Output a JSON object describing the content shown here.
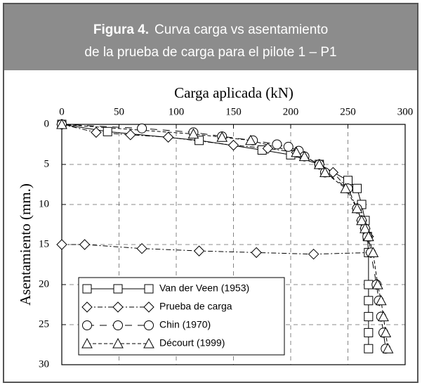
{
  "chart_data": {
    "type": "line",
    "title_label": "Figura 4.",
    "title": "Curva carga vs asentamiento",
    "subtitle": "de la prueba de carga para el pilote 1 – P1",
    "x_label": "Carga aplicada (kN)",
    "y_label": "Asentamiento (mm.)",
    "xlim": [
      0,
      300
    ],
    "xticks": [
      0,
      50,
      100,
      150,
      200,
      250,
      300
    ],
    "ylim": [
      0,
      30
    ],
    "yticks": [
      0,
      5,
      10,
      15,
      20,
      25,
      30
    ],
    "y_inverted": true,
    "grid": true,
    "legend": "lower left",
    "series": [
      {
        "name": "Van der Veen (1953)",
        "color": "#000000",
        "marker": "square",
        "dash": "solid",
        "x": [
          0,
          40,
          120,
          175,
          200,
          225,
          250,
          258,
          262,
          265,
          267,
          268,
          268,
          268,
          268,
          268,
          268
        ],
        "values": [
          0,
          0.9,
          2,
          3.2,
          3.8,
          5,
          7,
          8,
          10,
          12,
          14,
          16,
          20,
          22,
          24,
          26,
          28
        ]
      },
      {
        "name": "Prueba de carga",
        "color": "#000000",
        "marker": "diamond",
        "dash": "dashdot",
        "x": [
          0,
          30,
          60,
          93,
          150,
          180,
          205,
          225,
          237,
          250,
          258,
          262,
          265,
          268,
          270,
          220,
          170,
          120,
          70,
          20,
          0
        ],
        "values": [
          0,
          1,
          1.3,
          1.6,
          2.6,
          3,
          3.5,
          5,
          6,
          8,
          10.5,
          12,
          13,
          14,
          16,
          16.2,
          16,
          15.8,
          15.5,
          15,
          15
        ]
      },
      {
        "name": "Chin (1970)",
        "color": "#000000",
        "marker": "circle",
        "dash": "longdash",
        "x": [
          0,
          70,
          115,
          140,
          167,
          188,
          198,
          207,
          212,
          225,
          230,
          250,
          258,
          262,
          265,
          267,
          270,
          275,
          277,
          279,
          281,
          283
        ],
        "values": [
          0,
          0.5,
          1,
          1.5,
          2,
          2.5,
          2.8,
          3.3,
          4,
          5,
          6,
          8,
          10.5,
          12,
          13,
          14,
          16,
          20,
          22,
          24,
          26,
          28
        ]
      },
      {
        "name": "Décourt (1999)",
        "color": "#000000",
        "marker": "triangle",
        "dash": "dashed",
        "x": [
          0,
          115,
          140,
          165,
          205,
          212,
          225,
          230,
          248,
          258,
          262,
          265,
          268,
          272,
          276,
          279,
          281,
          283,
          285
        ],
        "values": [
          0,
          1.2,
          1.6,
          2,
          3.5,
          4,
          5,
          6,
          8,
          10.5,
          12,
          13,
          14,
          16,
          20,
          22,
          24,
          26,
          28
        ]
      }
    ]
  }
}
